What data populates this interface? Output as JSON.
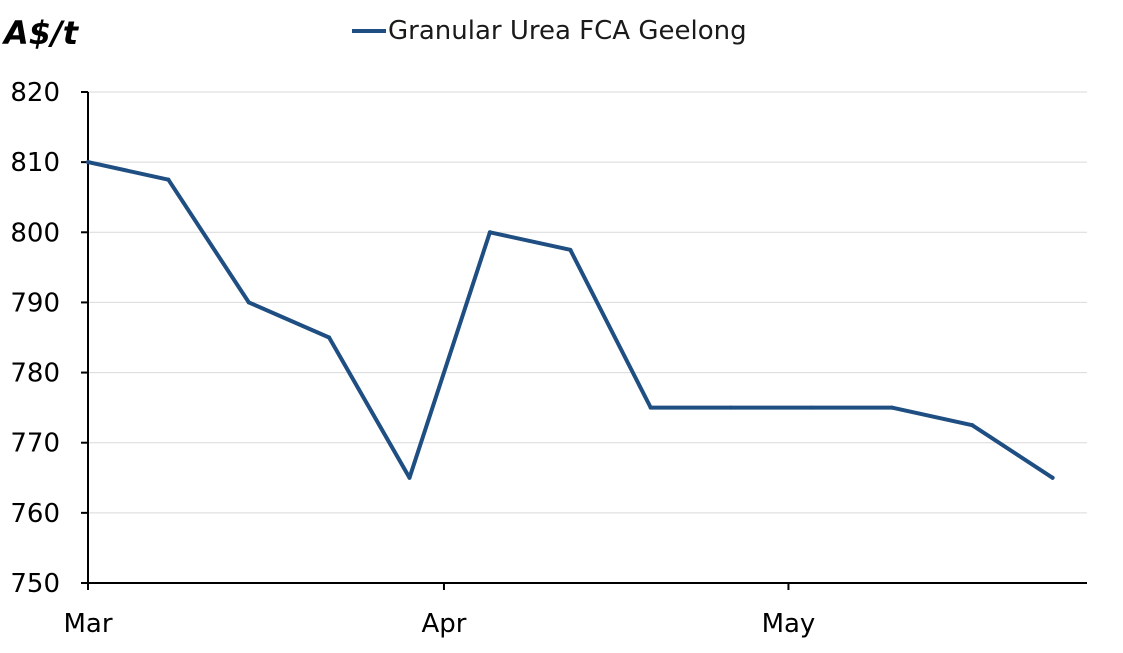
{
  "chart_data": {
    "type": "line",
    "ylabel": "A$/t",
    "xlabel": "",
    "ylim": [
      750,
      820
    ],
    "y_ticks": [
      750,
      760,
      770,
      780,
      790,
      800,
      810,
      820
    ],
    "x_ticks": [
      {
        "label": "Mar",
        "date": "2024-03-01"
      },
      {
        "label": "Apr",
        "date": "2024-04-01"
      },
      {
        "label": "May",
        "date": "2024-05-01"
      }
    ],
    "x_range": [
      "2024-03-01",
      "2024-05-27"
    ],
    "grid": true,
    "legend_position": "top",
    "series": [
      {
        "name": "Granular Urea FCA Geelong",
        "color": "#1f4e82",
        "x": [
          "2024-03-01",
          "2024-03-08",
          "2024-03-15",
          "2024-03-22",
          "2024-03-29",
          "2024-04-05",
          "2024-04-12",
          "2024-04-19",
          "2024-04-26",
          "2024-05-03",
          "2024-05-10",
          "2024-05-17",
          "2024-05-24"
        ],
        "values": [
          810,
          807.5,
          790,
          785,
          765,
          800,
          797.5,
          775,
          775,
          775,
          775,
          772.5,
          765
        ]
      }
    ]
  }
}
